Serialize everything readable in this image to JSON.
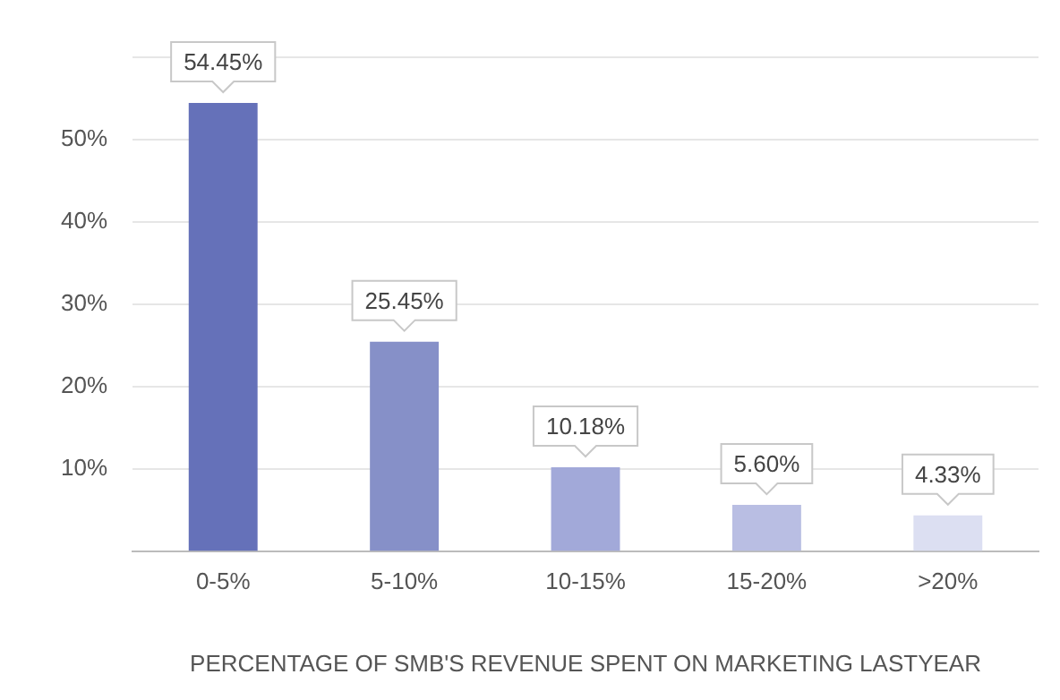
{
  "chart_data": {
    "type": "bar",
    "xlabel": "PERCENTAGE OF SMB'S REVENUE SPENT ON MARKETING LASTYEAR",
    "categories": [
      "0-5%",
      "5-10%",
      "10-15%",
      "15-20%",
      ">20%"
    ],
    "values": [
      54.45,
      25.45,
      10.18,
      5.6,
      4.33
    ],
    "colors": [
      "#6571b9",
      "#8690c8",
      "#a2a9d9",
      "#b9bee3",
      "#dcdff2"
    ],
    "value_labels": [
      "54.45%",
      "25.45%",
      "10.18%",
      "5.60%",
      "4.33%"
    ],
    "ylim": [
      0,
      60
    ],
    "yticks": [
      {
        "value": 10,
        "label": "10%"
      },
      {
        "value": 20,
        "label": "20%"
      },
      {
        "value": 30,
        "label": "30%"
      },
      {
        "value": 40,
        "label": "40%"
      },
      {
        "value": 50,
        "label": "50%"
      },
      {
        "value": 60,
        "label": null
      }
    ],
    "grid": "y",
    "legend": false
  }
}
